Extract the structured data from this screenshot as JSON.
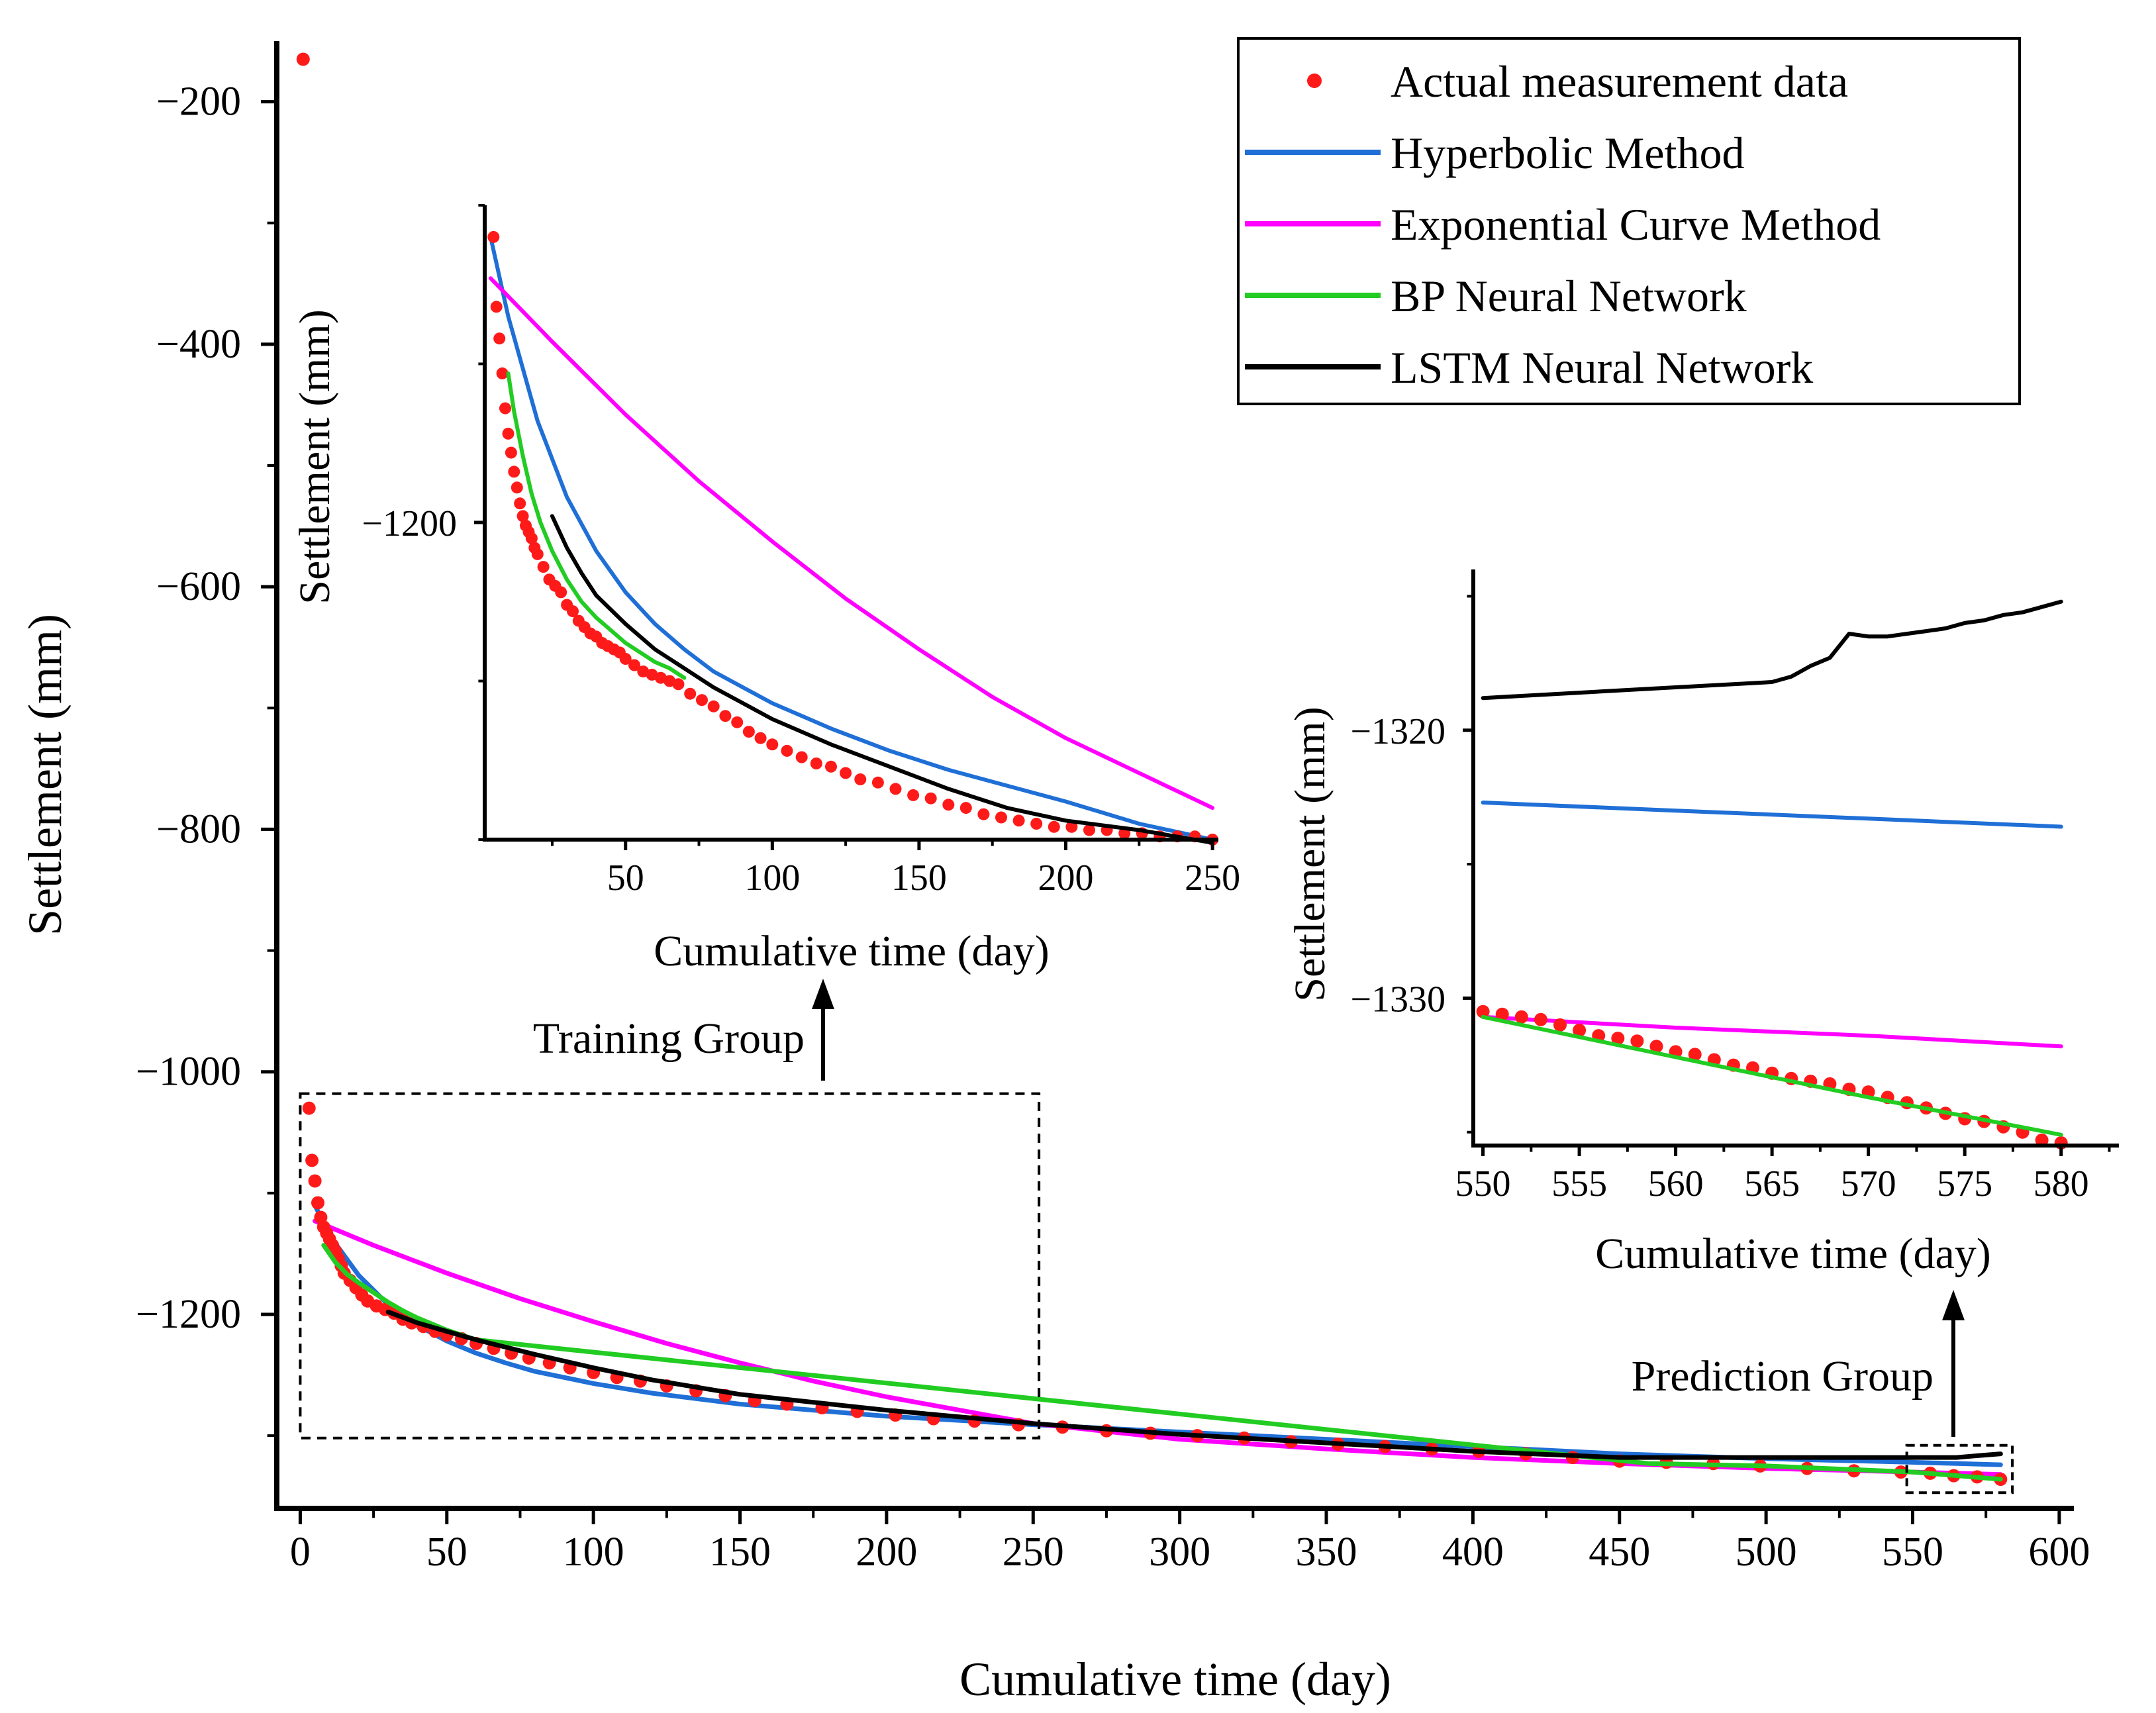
{
  "chart_data": [
    {
      "id": "main",
      "type": "line",
      "xlabel": "Cumulative time (day)",
      "ylabel": "Settlement (mm)",
      "xlim": [
        -8,
        605
      ],
      "ylim": [
        -1360,
        -150
      ],
      "xticks": [
        0,
        50,
        100,
        150,
        200,
        250,
        300,
        350,
        400,
        450,
        500,
        550,
        600
      ],
      "yticks": [
        -200,
        -400,
        -600,
        -800,
        -1000,
        -1200
      ],
      "legend": [
        {
          "name": "Actual measurement data",
          "color": "#ff1a1a",
          "marker": "dot"
        },
        {
          "name": "Hyperbolic Method",
          "color": "#1f6fd6",
          "marker": "line"
        },
        {
          "name": "Exponential Curve Method",
          "color": "#ff00ff",
          "marker": "line"
        },
        {
          "name": "BP Neural Network",
          "color": "#22cc22",
          "marker": "line"
        },
        {
          "name": "LSTM Neural Network",
          "color": "#000000",
          "marker": "line"
        }
      ],
      "legend_position": "top-right",
      "series": [
        {
          "name": "Actual measurement data",
          "color": "#ff1a1a",
          "kind": "scatter",
          "x": [
            1,
            3,
            4,
            5,
            6,
            7,
            8,
            9,
            10,
            11,
            12,
            13,
            14,
            15,
            17,
            19,
            21,
            23,
            26,
            29,
            32,
            35,
            38,
            42,
            46,
            50,
            55,
            60,
            66,
            72,
            78,
            85,
            92,
            100,
            108,
            116,
            125,
            135,
            145,
            155,
            166,
            178,
            190,
            203,
            216,
            230,
            245,
            260,
            275,
            290,
            306,
            322,
            338,
            354,
            370,
            386,
            402,
            418,
            434,
            450,
            466,
            482,
            498,
            514,
            530,
            546,
            556,
            564,
            572,
            580
          ],
          "y": [
            -165,
            -1030,
            -1073,
            -1090,
            -1108,
            -1120,
            -1128,
            -1133,
            -1138,
            -1143,
            -1148,
            -1154,
            -1160,
            -1166,
            -1172,
            -1178,
            -1184,
            -1189,
            -1193,
            -1196,
            -1199,
            -1204,
            -1207,
            -1210,
            -1214,
            -1217,
            -1220,
            -1224,
            -1228,
            -1232,
            -1236,
            -1240,
            -1244,
            -1248,
            -1252,
            -1255,
            -1259,
            -1263,
            -1267,
            -1271,
            -1274,
            -1277,
            -1280,
            -1283,
            -1286,
            -1288,
            -1291,
            -1293,
            -1296,
            -1298,
            -1300,
            -1302,
            -1305,
            -1307,
            -1309,
            -1311,
            -1313,
            -1315,
            -1318,
            -1321,
            -1322,
            -1323,
            -1325,
            -1327,
            -1329,
            -1330,
            -1331,
            -1333,
            -1334,
            -1336
          ]
        },
        {
          "name": "Hyperbolic Method",
          "color": "#1f6fd6",
          "kind": "line",
          "x": [
            5,
            10,
            20,
            30,
            40,
            50,
            60,
            70,
            80,
            100,
            120,
            150,
            200,
            250,
            300,
            350,
            400,
            450,
            500,
            550,
            580
          ],
          "y": [
            -1110,
            -1135,
            -1168,
            -1192,
            -1209,
            -1222,
            -1232,
            -1240,
            -1247,
            -1257,
            -1265,
            -1274,
            -1284,
            -1291,
            -1297,
            -1303,
            -1309,
            -1315,
            -1319,
            -1322,
            -1324
          ]
        },
        {
          "name": "Exponential Curve Method",
          "color": "#ff00ff",
          "kind": "line",
          "x": [
            5,
            25,
            50,
            75,
            100,
            125,
            150,
            175,
            200,
            225,
            250,
            300,
            350,
            400,
            450,
            500,
            550,
            580
          ],
          "y": [
            -1123,
            -1143,
            -1166,
            -1187,
            -1206,
            -1224,
            -1240,
            -1255,
            -1268,
            -1279,
            -1290,
            -1303,
            -1311,
            -1318,
            -1323,
            -1327,
            -1330,
            -1332
          ]
        },
        {
          "name": "BP Neural Network",
          "color": "#22cc22",
          "kind": "line",
          "x": [
            8,
            12,
            16,
            20,
            25,
            30,
            35,
            40,
            45,
            50,
            55,
            60,
            460,
            480,
            500,
            520,
            540,
            550,
            560,
            570,
            580
          ],
          "y": [
            -1143,
            -1157,
            -1167,
            -1174,
            -1182,
            -1190,
            -1197,
            -1203,
            -1208,
            -1213,
            -1217,
            -1221,
            -1323,
            -1324,
            -1325,
            -1327,
            -1329,
            -1330,
            -1332,
            -1334,
            -1336
          ]
        },
        {
          "name": "LSTM Neural Network",
          "color": "#000000",
          "kind": "line",
          "x": [
            30,
            40,
            50,
            60,
            80,
            100,
            120,
            150,
            200,
            250,
            300,
            350,
            400,
            450,
            500,
            550,
            560,
            565,
            570,
            575,
            580
          ],
          "y": [
            -1198,
            -1207,
            -1214,
            -1221,
            -1233,
            -1244,
            -1254,
            -1266,
            -1279,
            -1290,
            -1299,
            -1306,
            -1313,
            -1318,
            -1318,
            -1318,
            -1318,
            -1318,
            -1317,
            -1316,
            -1315
          ]
        }
      ],
      "annotations": [
        {
          "text": "Training Group",
          "target": "inset-1"
        },
        {
          "text": "Prediction Group",
          "target": "inset-2"
        }
      ]
    },
    {
      "id": "inset-1",
      "type": "line",
      "xlabel": "Cumulative time (day)",
      "ylabel": "Settlement (mm)",
      "xlim": [
        2,
        252
      ],
      "ylim": [
        -1300,
        -1100
      ],
      "xticks": [
        50,
        100,
        150,
        200,
        250
      ],
      "yticks": [
        -1200
      ],
      "series": [
        {
          "name": "Actual measurement data",
          "color": "#ff1a1a",
          "kind": "scatter",
          "x": [
            5,
            6,
            7,
            8,
            9,
            10,
            11,
            12,
            13,
            14,
            15,
            16,
            17,
            18,
            19,
            20,
            22,
            24,
            26,
            28,
            30,
            32,
            34,
            36,
            38,
            40,
            42,
            44,
            46,
            48,
            50,
            53,
            56,
            59,
            62,
            65,
            68,
            72,
            76,
            80,
            84,
            88,
            92,
            96,
            100,
            105,
            110,
            115,
            120,
            125,
            130,
            136,
            142,
            148,
            154,
            160,
            166,
            172,
            178,
            184,
            190,
            196,
            202,
            208,
            214,
            220,
            226,
            232,
            238,
            244,
            250
          ],
          "y": [
            -1110,
            -1132,
            -1142,
            -1153,
            -1164,
            -1172,
            -1178,
            -1184,
            -1189,
            -1194,
            -1198,
            -1201,
            -1203,
            -1205,
            -1208,
            -1210,
            -1214,
            -1218,
            -1220,
            -1222,
            -1226,
            -1228,
            -1231,
            -1233,
            -1235,
            -1236,
            -1238,
            -1239,
            -1240,
            -1241,
            -1243,
            -1245,
            -1247,
            -1248,
            -1249,
            -1250,
            -1251,
            -1254,
            -1256,
            -1258,
            -1261,
            -1263,
            -1266,
            -1268,
            -1270,
            -1272,
            -1274,
            -1276,
            -1277,
            -1279,
            -1281,
            -1282,
            -1284,
            -1286,
            -1287,
            -1289,
            -1290,
            -1292,
            -1293,
            -1294,
            -1295,
            -1296,
            -1296,
            -1297,
            -1297,
            -1298,
            -1298,
            -1299,
            -1299,
            -1299,
            -1300
          ]
        },
        {
          "name": "Hyperbolic Method",
          "color": "#1f6fd6",
          "kind": "line",
          "x": [
            4,
            10,
            20,
            30,
            40,
            50,
            60,
            70,
            80,
            90,
            100,
            120,
            140,
            160,
            180,
            200,
            225,
            250
          ],
          "y": [
            -1110,
            -1135,
            -1168,
            -1192,
            -1209,
            -1222,
            -1232,
            -1240,
            -1247,
            -1252,
            -1257,
            -1265,
            -1272,
            -1278,
            -1283,
            -1288,
            -1295,
            -1300
          ]
        },
        {
          "name": "Exponential Curve Method",
          "color": "#ff00ff",
          "kind": "line",
          "x": [
            4,
            25,
            50,
            75,
            100,
            125,
            150,
            175,
            200,
            225,
            250
          ],
          "y": [
            -1123,
            -1143,
            -1166,
            -1187,
            -1206,
            -1224,
            -1240,
            -1255,
            -1268,
            -1279,
            -1290
          ]
        },
        {
          "name": "BP Neural Network",
          "color": "#22cc22",
          "kind": "line",
          "x": [
            10,
            12,
            15,
            18,
            21,
            25,
            30,
            35,
            40,
            45,
            50,
            55,
            60,
            65,
            70
          ],
          "y": [
            -1153,
            -1165,
            -1179,
            -1191,
            -1200,
            -1209,
            -1218,
            -1225,
            -1230,
            -1234,
            -1238,
            -1241,
            -1244,
            -1246,
            -1249
          ]
        },
        {
          "name": "LSTM Neural Network",
          "color": "#000000",
          "kind": "line",
          "x": [
            25,
            30,
            35,
            40,
            50,
            60,
            70,
            80,
            90,
            100,
            120,
            140,
            160,
            180,
            200,
            225,
            250
          ],
          "y": [
            -1198,
            -1208,
            -1216,
            -1223,
            -1232,
            -1240,
            -1246,
            -1252,
            -1257,
            -1262,
            -1270,
            -1277,
            -1284,
            -1290,
            -1294,
            -1297,
            -1301
          ]
        }
      ]
    },
    {
      "id": "inset-2",
      "type": "line",
      "xlabel": "Cumulative time (day)",
      "ylabel": "Settlement (mm)",
      "xlim": [
        549.5,
        583
      ],
      "ylim": [
        -1335.5,
        -1314
      ],
      "xticks": [
        550,
        555,
        560,
        565,
        570,
        575,
        580
      ],
      "yticks": [
        -1320,
        -1330
      ],
      "series": [
        {
          "name": "Actual measurement data",
          "color": "#ff1a1a",
          "kind": "scatter",
          "x": [
            550,
            551,
            552,
            553,
            554,
            555,
            556,
            557,
            558,
            559,
            560,
            561,
            562,
            563,
            564,
            565,
            566,
            567,
            568,
            569,
            570,
            571,
            572,
            573,
            574,
            575,
            576,
            577,
            578,
            579,
            580
          ],
          "y": [
            -1330.5,
            -1330.6,
            -1330.7,
            -1330.8,
            -1331.0,
            -1331.2,
            -1331.4,
            -1331.5,
            -1331.6,
            -1331.8,
            -1332.0,
            -1332.1,
            -1332.3,
            -1332.5,
            -1332.6,
            -1332.8,
            -1333.0,
            -1333.1,
            -1333.2,
            -1333.4,
            -1333.5,
            -1333.7,
            -1333.9,
            -1334.1,
            -1334.3,
            -1334.5,
            -1334.6,
            -1334.8,
            -1335.0,
            -1335.3,
            -1335.4
          ]
        },
        {
          "name": "Hyperbolic Method",
          "color": "#1f6fd6",
          "kind": "line",
          "x": [
            550,
            560,
            570,
            580
          ],
          "y": [
            -1322.7,
            -1323.0,
            -1323.3,
            -1323.6
          ]
        },
        {
          "name": "Exponential Curve Method",
          "color": "#ff00ff",
          "kind": "line",
          "x": [
            550,
            560,
            570,
            580
          ],
          "y": [
            -1330.7,
            -1331.1,
            -1331.4,
            -1331.8
          ]
        },
        {
          "name": "BP Neural Network",
          "color": "#22cc22",
          "kind": "line",
          "x": [
            550,
            560,
            570,
            580
          ],
          "y": [
            -1330.7,
            -1332.2,
            -1333.7,
            -1335.1
          ]
        },
        {
          "name": "LSTM Neural Network",
          "color": "#000000",
          "kind": "line",
          "x": [
            550,
            555,
            560,
            565,
            566,
            567,
            568,
            569,
            570,
            571,
            572,
            573,
            574,
            575,
            576,
            577,
            578,
            579,
            580
          ],
          "y": [
            -1318.8,
            -1318.6,
            -1318.4,
            -1318.2,
            -1318.0,
            -1317.6,
            -1317.3,
            -1316.4,
            -1316.5,
            -1316.5,
            -1316.4,
            -1316.3,
            -1316.2,
            -1316.0,
            -1315.9,
            -1315.7,
            -1315.6,
            -1315.4,
            -1315.2
          ]
        }
      ]
    }
  ]
}
